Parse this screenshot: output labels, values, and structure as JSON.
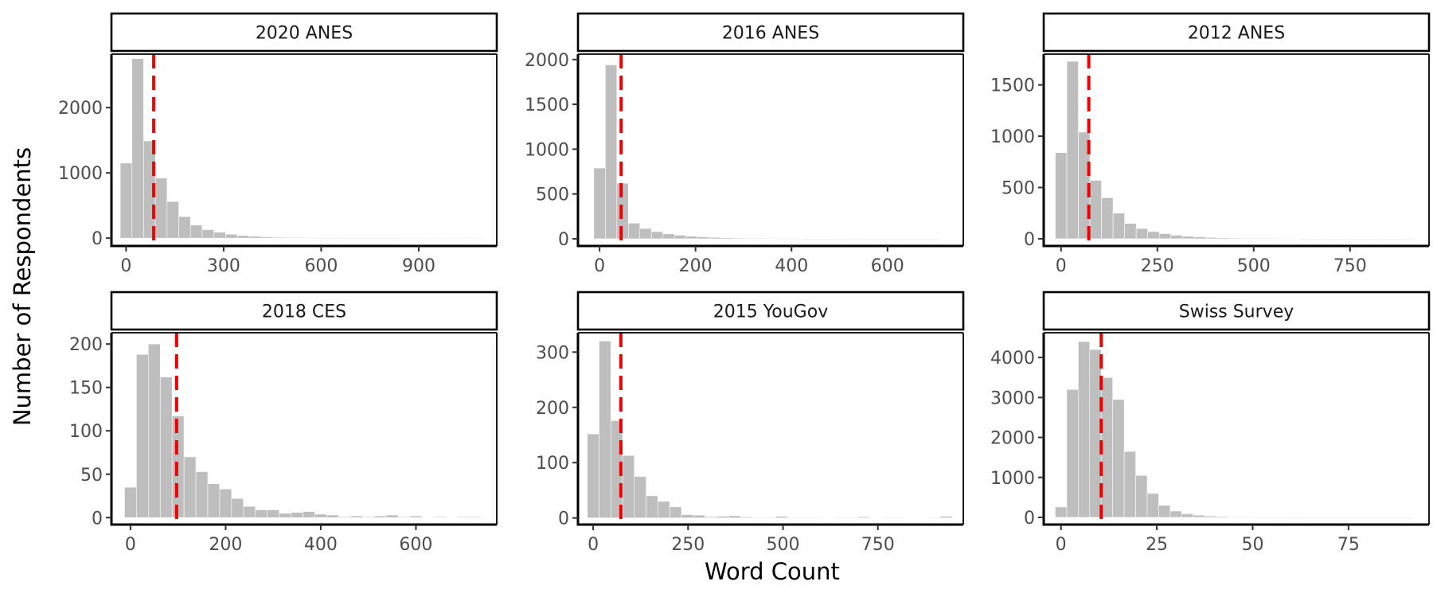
{
  "figure": {
    "xlabel": "Word Count",
    "ylabel": "Number of Respondents"
  },
  "chart_data": [
    {
      "type": "bar",
      "title": "2020 ANES",
      "bin_width": 36,
      "x_first_bin": 0,
      "values": [
        1150,
        2750,
        1490,
        920,
        560,
        330,
        200,
        130,
        90,
        60,
        40,
        28,
        20,
        14,
        10,
        8,
        6,
        5,
        4,
        3,
        3,
        2,
        2,
        2,
        1,
        1,
        1,
        1,
        1,
        1,
        1
      ],
      "mean_line": 85,
      "xlim": [
        -45,
        1140
      ],
      "ylim": [
        -120,
        2820
      ],
      "xticks": [
        0,
        300,
        600,
        900
      ],
      "yticks": [
        0,
        1000,
        2000
      ]
    },
    {
      "type": "bar",
      "title": "2016 ANES",
      "bin_width": 24,
      "x_first_bin": 0,
      "values": [
        790,
        1940,
        620,
        175,
        115,
        80,
        55,
        40,
        30,
        22,
        16,
        12,
        9,
        7,
        5,
        4,
        3,
        3,
        2,
        2,
        2,
        1,
        1,
        1,
        1,
        1,
        1,
        1,
        1,
        1
      ],
      "mean_line": 45,
      "xlim": [
        -45,
        758
      ],
      "ylim": [
        -80,
        2060
      ],
      "xticks": [
        0,
        200,
        400,
        600
      ],
      "yticks": [
        0,
        500,
        1000,
        1500,
        2000
      ]
    },
    {
      "type": "bar",
      "title": "2012 ANES",
      "bin_width": 30,
      "x_first_bin": 0,
      "values": [
        840,
        1730,
        1040,
        570,
        400,
        250,
        150,
        100,
        70,
        50,
        35,
        25,
        18,
        13,
        10,
        8,
        6,
        5,
        4,
        3,
        3,
        2,
        2,
        2,
        1,
        1,
        1,
        1,
        1,
        1,
        1
      ],
      "mean_line": 72,
      "xlim": [
        -45,
        955
      ],
      "ylim": [
        -70,
        1800
      ],
      "xticks": [
        0,
        250,
        500,
        750
      ],
      "yticks": [
        0,
        500,
        1000,
        1500
      ]
    },
    {
      "type": "bar",
      "title": "2018 CES",
      "bin_width": 25,
      "x_first_bin": 0,
      "values": [
        35,
        188,
        200,
        162,
        117,
        70,
        53,
        39,
        33,
        22,
        13,
        9,
        9,
        5,
        6,
        7,
        4,
        3,
        1,
        2,
        1,
        2,
        3,
        1,
        2,
        0,
        1,
        0,
        1,
        1
      ],
      "mean_line": 97,
      "xlim": [
        -40,
        770
      ],
      "ylim": [
        -8,
        213
      ],
      "xticks": [
        0,
        200,
        400,
        600
      ],
      "yticks": [
        0,
        50,
        100,
        150,
        200
      ]
    },
    {
      "type": "bar",
      "title": "2015 YouGov",
      "bin_width": 31,
      "x_first_bin": 0,
      "values": [
        152,
        320,
        176,
        113,
        75,
        40,
        30,
        20,
        6,
        5,
        2,
        3,
        4,
        2,
        1,
        1,
        3,
        1,
        1,
        1,
        0,
        1,
        1,
        2,
        0,
        1,
        1,
        0,
        0,
        1,
        3
      ],
      "mean_line": 73,
      "xlim": [
        -40,
        975
      ],
      "ylim": [
        -12,
        335
      ],
      "xticks": [
        0,
        250,
        500,
        750
      ],
      "yticks": [
        0,
        100,
        200,
        300
      ]
    },
    {
      "type": "bar",
      "title": "Swiss Survey",
      "bin_width": 3,
      "x_first_bin": 0,
      "values": [
        260,
        3200,
        4400,
        4200,
        3500,
        2950,
        1650,
        1050,
        600,
        300,
        160,
        90,
        55,
        35,
        25,
        15,
        10,
        8,
        6,
        5,
        4,
        3,
        2,
        2,
        2,
        1,
        1,
        1,
        1,
        1,
        1
      ],
      "mean_line": 10.5,
      "xlim": [
        -4.5,
        96
      ],
      "ylim": [
        -180,
        4620
      ],
      "xticks": [
        0,
        25,
        50,
        75
      ],
      "yticks": [
        0,
        1000,
        2000,
        3000,
        4000
      ]
    }
  ]
}
